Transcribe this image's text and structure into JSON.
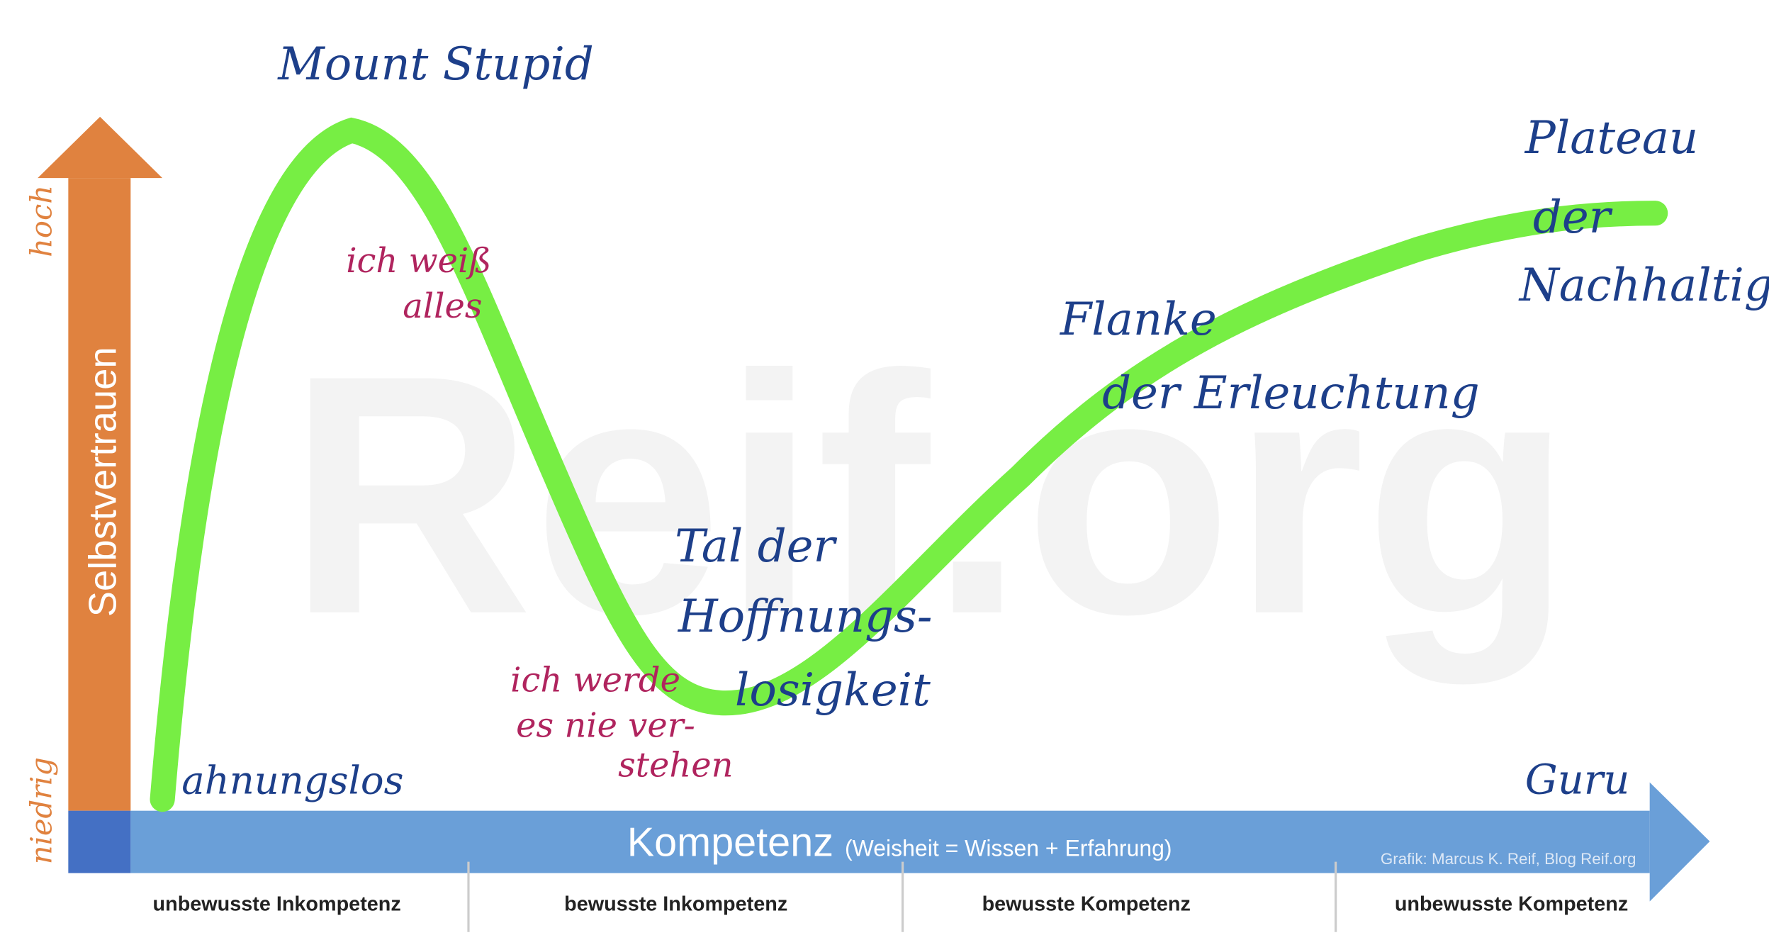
{
  "watermark": "Reif.org",
  "y_axis": {
    "label": "Selbstvertrauen",
    "high": "hoch",
    "low": "niedrig"
  },
  "x_axis": {
    "label": "Kompetenz",
    "sublabel": "(Weisheit = Wissen + Erfahrung)",
    "credit": "Grafik: Marcus K. Reif, Blog Reif.org"
  },
  "stages": [
    "unbewusste Inkompetenz",
    "bewusste Inkompetenz",
    "bewusste Kompetenz",
    "unbewusste Kompetenz"
  ],
  "annotations": {
    "mount_stupid": "Mount Stupid",
    "know_all": [
      "ich weiß",
      "alles"
    ],
    "valley": [
      "Tal der",
      "Hoffnungs-",
      "losigkeit"
    ],
    "never_understand": [
      "ich werde",
      "es nie ver-",
      "stehen"
    ],
    "slope": [
      "Flanke",
      "der Erleuchtung"
    ],
    "plateau": [
      "Plateau",
      "der",
      "Nachhaltigkeit"
    ],
    "clueless": "ahnungslos",
    "guru": "Guru"
  }
}
